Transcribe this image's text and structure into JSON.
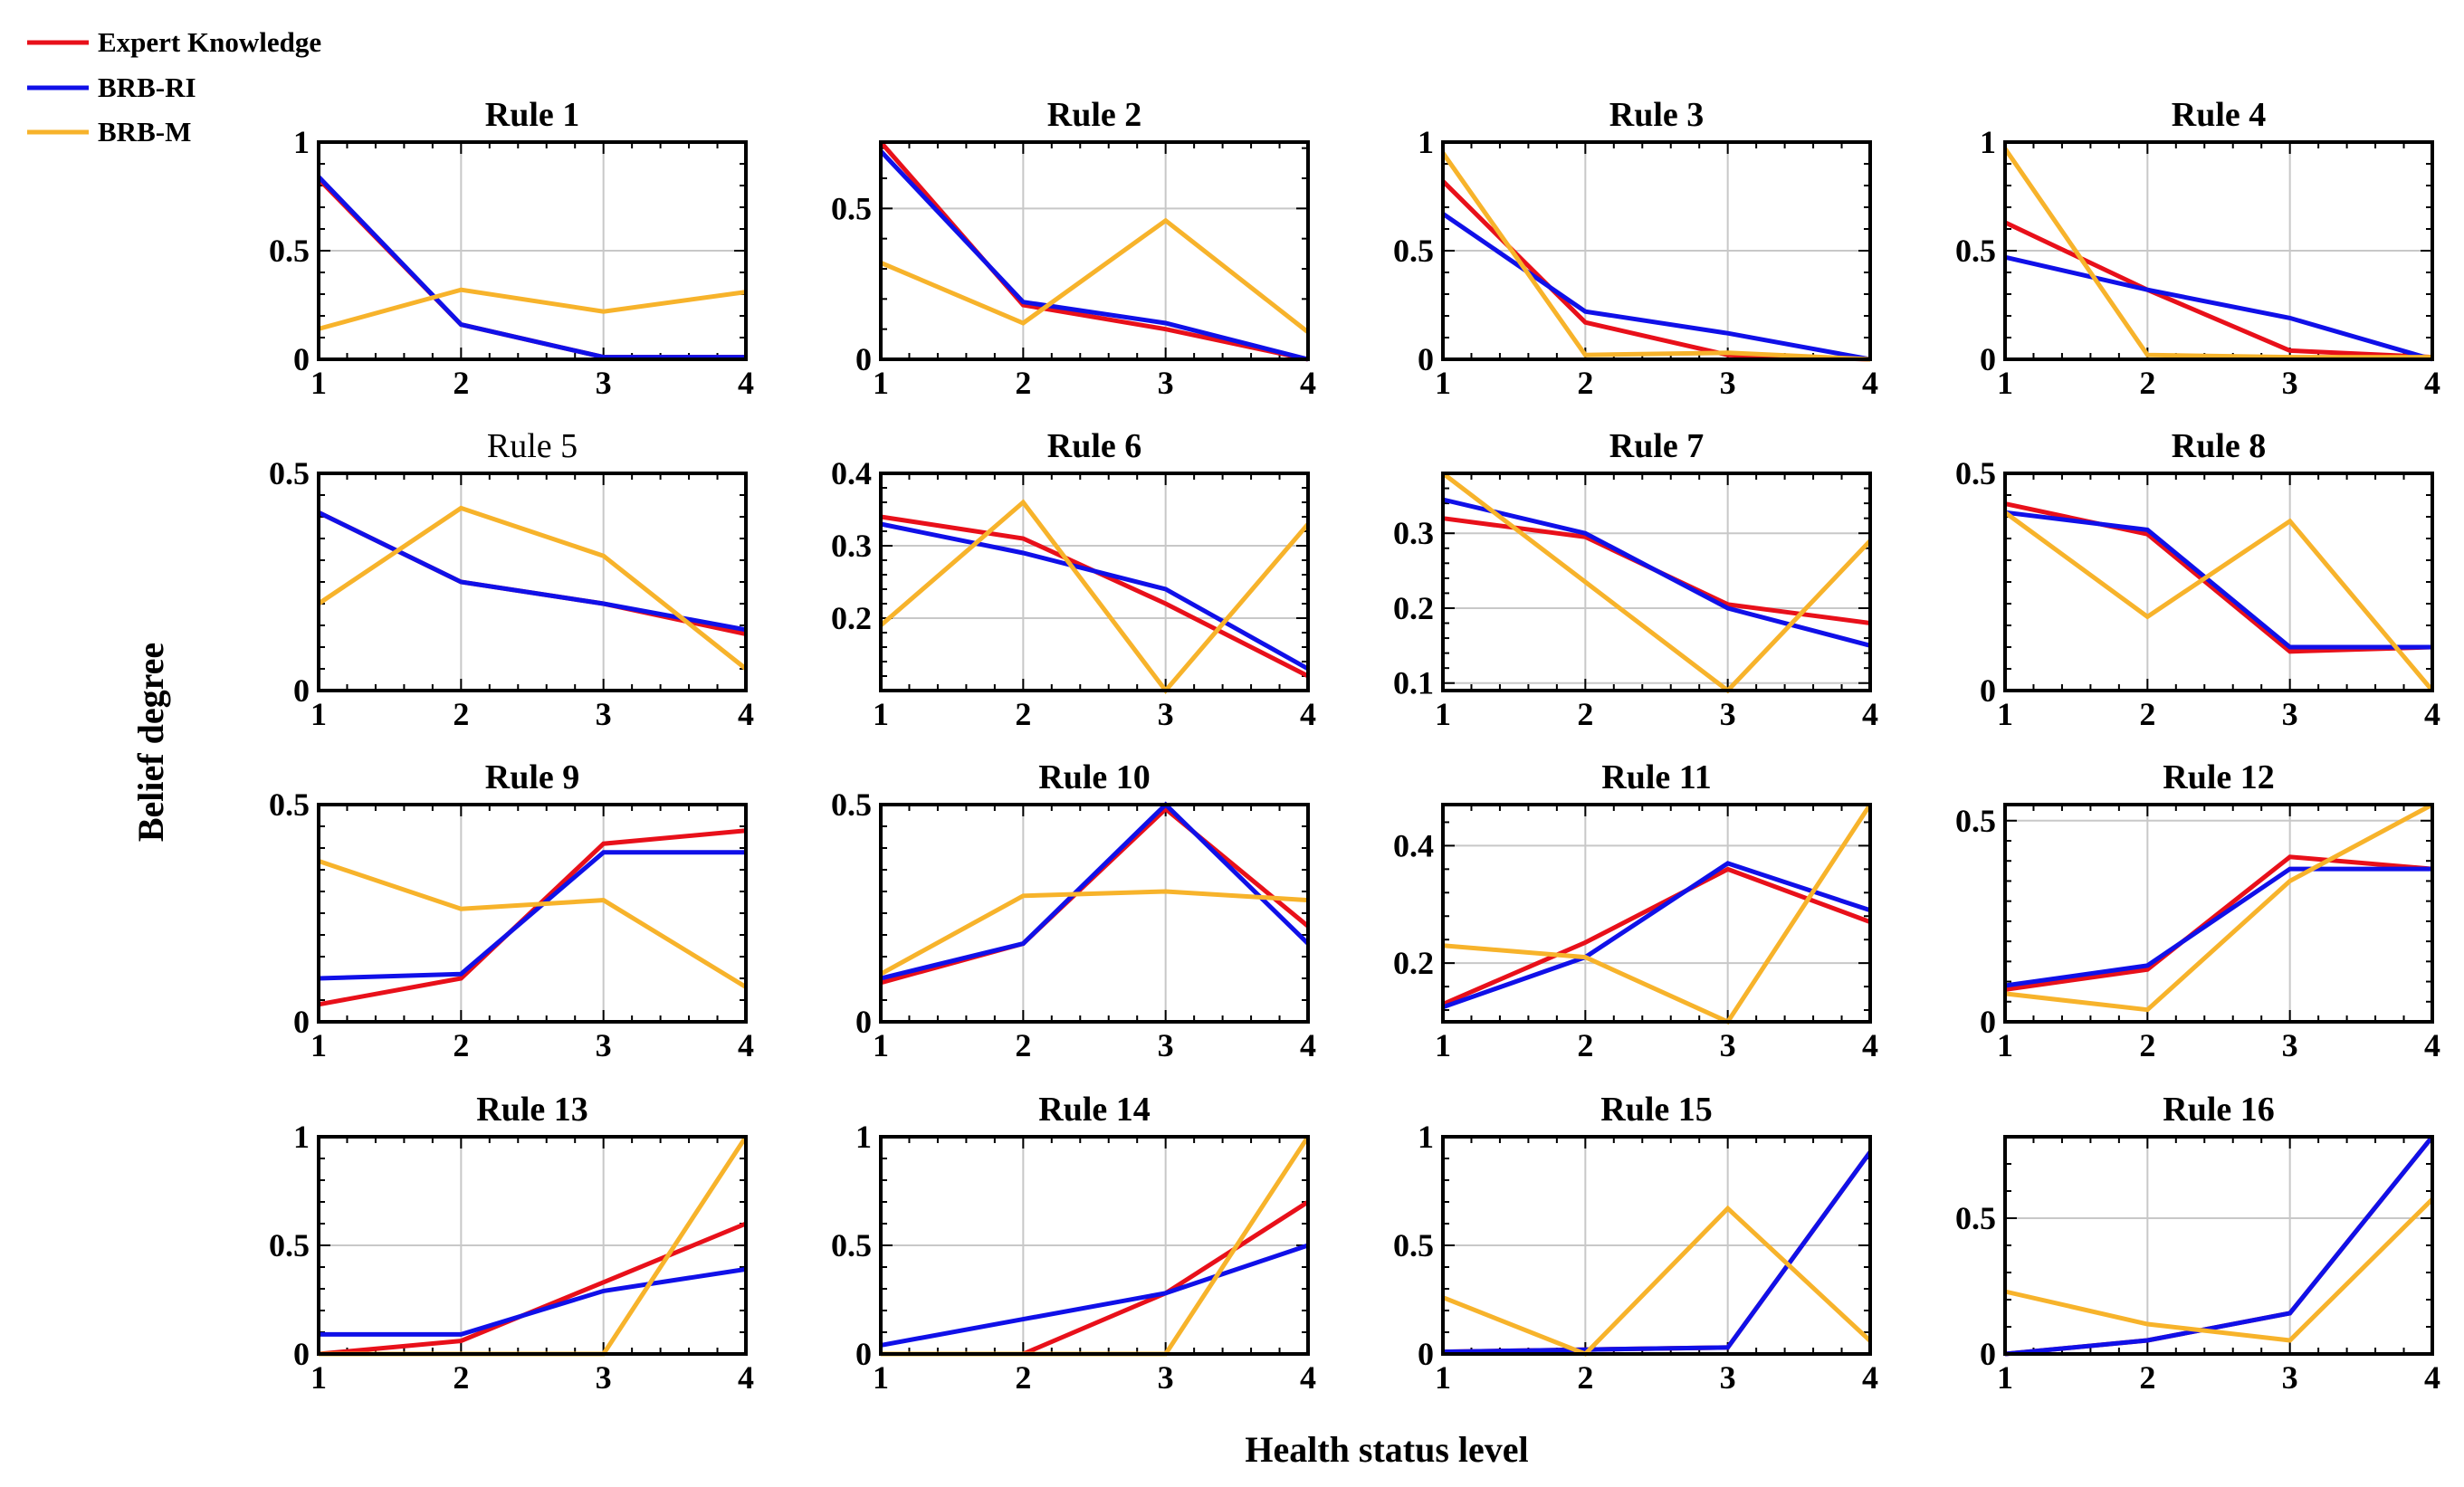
{
  "legend": [
    {
      "label": "Expert Knowledge",
      "color": "#e8101a"
    },
    {
      "label": "BRB-RI",
      "color": "#1010e8"
    },
    {
      "label": "BRB-M",
      "color": "#f7b32b"
    }
  ],
  "ylabel": "Belief degree",
  "xlabel": "Health status level",
  "chart_data": [
    {
      "type": "line",
      "title": "Rule 1",
      "bold": true,
      "x": [
        1,
        2,
        3,
        4
      ],
      "ylim": [
        0,
        1
      ],
      "yticks": [
        0,
        0.5,
        1
      ],
      "ytick_labels": [
        "0",
        "0.5",
        "1"
      ],
      "minor_step": 0.1,
      "series": [
        {
          "name": "Expert Knowledge",
          "values": [
            0.83,
            0.16,
            0.01,
            0.01
          ]
        },
        {
          "name": "BRB-RI",
          "values": [
            0.84,
            0.16,
            0.01,
            0.01
          ]
        },
        {
          "name": "BRB-M",
          "values": [
            0.14,
            0.32,
            0.22,
            0.31
          ]
        }
      ]
    },
    {
      "type": "line",
      "title": "Rule 2",
      "bold": true,
      "x": [
        1,
        2,
        3,
        4
      ],
      "ylim": [
        0,
        0.72
      ],
      "yticks": [
        0,
        0.5
      ],
      "ytick_labels": [
        "0",
        "0.5"
      ],
      "minor_step": 0.1,
      "series": [
        {
          "name": "Expert Knowledge",
          "values": [
            0.72,
            0.18,
            0.1,
            0.0
          ]
        },
        {
          "name": "BRB-RI",
          "values": [
            0.69,
            0.19,
            0.12,
            0.0
          ]
        },
        {
          "name": "BRB-M",
          "values": [
            0.32,
            0.12,
            0.46,
            0.09
          ]
        }
      ]
    },
    {
      "type": "line",
      "title": "Rule 3",
      "bold": true,
      "x": [
        1,
        2,
        3,
        4
      ],
      "ylim": [
        0,
        1
      ],
      "yticks": [
        0,
        0.5,
        1
      ],
      "ytick_labels": [
        "0",
        "0.5",
        "1"
      ],
      "minor_step": 0.1,
      "series": [
        {
          "name": "Expert Knowledge",
          "values": [
            0.82,
            0.17,
            0.02,
            0.0
          ]
        },
        {
          "name": "BRB-RI",
          "values": [
            0.67,
            0.22,
            0.12,
            0.0
          ]
        },
        {
          "name": "BRB-M",
          "values": [
            0.95,
            0.02,
            0.03,
            0.0
          ]
        }
      ]
    },
    {
      "type": "line",
      "title": "Rule 4",
      "bold": true,
      "x": [
        1,
        2,
        3,
        4
      ],
      "ylim": [
        0,
        1
      ],
      "yticks": [
        0,
        0.5,
        1
      ],
      "ytick_labels": [
        "0",
        "0.5",
        "1"
      ],
      "minor_step": 0.1,
      "series": [
        {
          "name": "Expert Knowledge",
          "values": [
            0.63,
            0.32,
            0.04,
            0.01
          ]
        },
        {
          "name": "BRB-RI",
          "values": [
            0.47,
            0.32,
            0.19,
            0.0
          ]
        },
        {
          "name": "BRB-M",
          "values": [
            0.97,
            0.02,
            0.01,
            0.01
          ]
        }
      ]
    },
    {
      "type": "line",
      "title": "Rule 5",
      "bold": false,
      "x": [
        1,
        2,
        3,
        4
      ],
      "ylim": [
        0,
        0.5
      ],
      "yticks": [
        0,
        0.5
      ],
      "ytick_labels": [
        "0",
        "0.5"
      ],
      "minor_step": 0.05,
      "series": [
        {
          "name": "Expert Knowledge",
          "values": [
            0.41,
            0.25,
            0.2,
            0.13
          ]
        },
        {
          "name": "BRB-RI",
          "values": [
            0.41,
            0.25,
            0.2,
            0.14
          ]
        },
        {
          "name": "BRB-M",
          "values": [
            0.2,
            0.42,
            0.31,
            0.05
          ]
        }
      ]
    },
    {
      "type": "line",
      "title": "Rule 6",
      "bold": true,
      "x": [
        1,
        2,
        3,
        4
      ],
      "ylim": [
        0.1,
        0.4
      ],
      "yticks": [
        0.2,
        0.3,
        0.4
      ],
      "ytick_labels": [
        "0.2",
        "0.3",
        "0.4"
      ],
      "minor_step": 0.02,
      "series": [
        {
          "name": "Expert Knowledge",
          "values": [
            0.34,
            0.31,
            0.22,
            0.12
          ]
        },
        {
          "name": "BRB-RI",
          "values": [
            0.33,
            0.29,
            0.24,
            0.13
          ]
        },
        {
          "name": "BRB-M",
          "values": [
            0.19,
            0.36,
            0.1,
            0.33
          ]
        }
      ]
    },
    {
      "type": "line",
      "title": "Rule 7",
      "bold": true,
      "x": [
        1,
        2,
        3,
        4
      ],
      "ylim": [
        0.09,
        0.38
      ],
      "yticks": [
        0.1,
        0.2,
        0.3
      ],
      "ytick_labels": [
        "0.1",
        "0.2",
        "0.3"
      ],
      "minor_step": 0.02,
      "series": [
        {
          "name": "Expert Knowledge",
          "values": [
            0.32,
            0.295,
            0.205,
            0.18
          ]
        },
        {
          "name": "BRB-RI",
          "values": [
            0.345,
            0.3,
            0.2,
            0.15
          ]
        },
        {
          "name": "BRB-M",
          "values": [
            0.38,
            0.235,
            0.09,
            0.29
          ]
        }
      ]
    },
    {
      "type": "line",
      "title": "Rule 8",
      "bold": true,
      "x": [
        1,
        2,
        3,
        4
      ],
      "ylim": [
        0,
        0.5
      ],
      "yticks": [
        0,
        0.5
      ],
      "ytick_labels": [
        "0",
        "0.5"
      ],
      "minor_step": 0.05,
      "series": [
        {
          "name": "Expert Knowledge",
          "values": [
            0.43,
            0.36,
            0.09,
            0.1
          ]
        },
        {
          "name": "BRB-RI",
          "values": [
            0.41,
            0.37,
            0.1,
            0.1
          ]
        },
        {
          "name": "BRB-M",
          "values": [
            0.41,
            0.17,
            0.39,
            0.0
          ]
        }
      ]
    },
    {
      "type": "line",
      "title": "Rule 9",
      "bold": true,
      "x": [
        1,
        2,
        3,
        4
      ],
      "ylim": [
        0,
        0.5
      ],
      "yticks": [
        0,
        0.5
      ],
      "ytick_labels": [
        "0",
        "0.5"
      ],
      "minor_step": 0.05,
      "series": [
        {
          "name": "Expert Knowledge",
          "values": [
            0.04,
            0.1,
            0.41,
            0.44
          ]
        },
        {
          "name": "BRB-RI",
          "values": [
            0.1,
            0.11,
            0.39,
            0.39
          ]
        },
        {
          "name": "BRB-M",
          "values": [
            0.37,
            0.26,
            0.28,
            0.08
          ]
        }
      ]
    },
    {
      "type": "line",
      "title": "Rule 10",
      "bold": true,
      "x": [
        1,
        2,
        3,
        4
      ],
      "ylim": [
        0,
        0.5
      ],
      "yticks": [
        0,
        0.5
      ],
      "ytick_labels": [
        "0",
        "0.5"
      ],
      "minor_step": 0.05,
      "series": [
        {
          "name": "Expert Knowledge",
          "values": [
            0.09,
            0.18,
            0.49,
            0.22
          ]
        },
        {
          "name": "BRB-RI",
          "values": [
            0.1,
            0.18,
            0.5,
            0.18
          ]
        },
        {
          "name": "BRB-M",
          "values": [
            0.11,
            0.29,
            0.3,
            0.28
          ]
        }
      ]
    },
    {
      "type": "line",
      "title": "Rule 11",
      "bold": true,
      "x": [
        1,
        2,
        3,
        4
      ],
      "ylim": [
        0.1,
        0.47
      ],
      "yticks": [
        0.2,
        0.4
      ],
      "ytick_labels": [
        "0.2",
        "0.4"
      ],
      "minor_step": 0.04,
      "series": [
        {
          "name": "Expert Knowledge",
          "values": [
            0.13,
            0.235,
            0.36,
            0.27
          ]
        },
        {
          "name": "BRB-RI",
          "values": [
            0.125,
            0.21,
            0.37,
            0.29
          ]
        },
        {
          "name": "BRB-M",
          "values": [
            0.23,
            0.21,
            0.1,
            0.47
          ]
        }
      ]
    },
    {
      "type": "line",
      "title": "Rule 12",
      "bold": true,
      "x": [
        1,
        2,
        3,
        4
      ],
      "ylim": [
        0,
        0.54
      ],
      "yticks": [
        0,
        0.5
      ],
      "ytick_labels": [
        "0",
        "0.5"
      ],
      "minor_step": 0.05,
      "series": [
        {
          "name": "Expert Knowledge",
          "values": [
            0.08,
            0.13,
            0.41,
            0.38
          ]
        },
        {
          "name": "BRB-RI",
          "values": [
            0.09,
            0.14,
            0.38,
            0.38
          ]
        },
        {
          "name": "BRB-M",
          "values": [
            0.07,
            0.03,
            0.35,
            0.54
          ]
        }
      ]
    },
    {
      "type": "line",
      "title": "Rule 13",
      "bold": true,
      "x": [
        1,
        2,
        3,
        4
      ],
      "ylim": [
        0,
        1
      ],
      "yticks": [
        0,
        0.5,
        1
      ],
      "ytick_labels": [
        "0",
        "0.5",
        "1"
      ],
      "minor_step": 0.1,
      "series": [
        {
          "name": "Expert Knowledge",
          "values": [
            0.0,
            0.06,
            0.33,
            0.6
          ]
        },
        {
          "name": "BRB-RI",
          "values": [
            0.09,
            0.09,
            0.29,
            0.39
          ]
        },
        {
          "name": "BRB-M",
          "values": [
            0.0,
            0.0,
            0.0,
            1.0
          ]
        }
      ]
    },
    {
      "type": "line",
      "title": "Rule 14",
      "bold": true,
      "x": [
        1,
        2,
        3,
        4
      ],
      "ylim": [
        0,
        1
      ],
      "yticks": [
        0,
        0.5,
        1
      ],
      "ytick_labels": [
        "0",
        "0.5",
        "1"
      ],
      "minor_step": 0.1,
      "series": [
        {
          "name": "Expert Knowledge",
          "values": [
            0.0,
            0.0,
            0.28,
            0.7
          ]
        },
        {
          "name": "BRB-RI",
          "values": [
            0.04,
            0.16,
            0.28,
            0.5
          ]
        },
        {
          "name": "BRB-M",
          "values": [
            0.0,
            0.0,
            0.0,
            1.0
          ]
        }
      ]
    },
    {
      "type": "line",
      "title": "Rule 15",
      "bold": true,
      "x": [
        1,
        2,
        3,
        4
      ],
      "ylim": [
        0,
        1
      ],
      "yticks": [
        0,
        0.5,
        1
      ],
      "ytick_labels": [
        "0",
        "0.5",
        "1"
      ],
      "minor_step": 0.1,
      "series": [
        {
          "name": "Expert Knowledge",
          "values": [
            0.01,
            0.02,
            0.03,
            0.93
          ]
        },
        {
          "name": "BRB-RI",
          "values": [
            0.01,
            0.02,
            0.03,
            0.93
          ]
        },
        {
          "name": "BRB-M",
          "values": [
            0.26,
            0.0,
            0.67,
            0.06
          ]
        }
      ]
    },
    {
      "type": "line",
      "title": "Rule 16",
      "bold": true,
      "x": [
        1,
        2,
        3,
        4
      ],
      "ylim": [
        0,
        0.8
      ],
      "yticks": [
        0,
        0.5
      ],
      "ytick_labels": [
        "0",
        "0.5"
      ],
      "minor_step": 0.1,
      "series": [
        {
          "name": "Expert Knowledge",
          "values": [
            0.0,
            0.05,
            0.15,
            0.8
          ]
        },
        {
          "name": "BRB-RI",
          "values": [
            0.0,
            0.05,
            0.15,
            0.8
          ]
        },
        {
          "name": "BRB-M",
          "values": [
            0.23,
            0.11,
            0.05,
            0.57
          ]
        }
      ]
    }
  ]
}
